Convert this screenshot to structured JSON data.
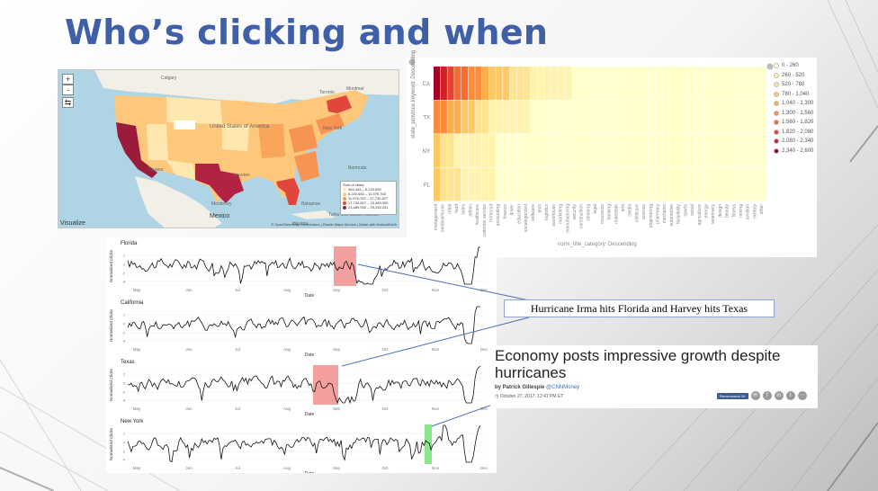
{
  "slide": {
    "title": "Who’s clicking and when",
    "callout": "Hurricane Irma hits Florida and Harvey hits Texas"
  },
  "map": {
    "zoom_in_label": "+",
    "zoom_out_label": "-",
    "places": [
      "Calgary",
      "Toronto",
      "United States of America",
      "Houston",
      "New York",
      "Montreal",
      "Bahamas",
      "Havana",
      "Bermuda",
      "Mexico",
      "Monterrey",
      "Tijuana",
      "Turks and Caicos Islands"
    ],
    "legend_title": "Sum of clicks",
    "legend_items": [
      {
        "label": "464,443 – 6,220,650",
        "color": "#fee8b0"
      },
      {
        "label": "6,220,650 – 11,976,763",
        "color": "#fdc77c"
      },
      {
        "label": "11,976,763 – 17,732,827",
        "color": "#f79353"
      },
      {
        "label": "17,732,827 – 23,489,000",
        "color": "#e0463b"
      },
      {
        "label": "23,489,000 – 29,245,251",
        "color": "#9b1b3c"
      }
    ],
    "visualize_label": "Visualize",
    "attribution": "© OpenStreetMap contributors | Elastic Maps Service | Made with NaturalEarth"
  },
  "heatmap": {
    "y_axis_title": "state_province.keyword: Descending",
    "x_axis_title": "norm_title_category: Descending",
    "rows": [
      "CA",
      "TX",
      "NY",
      "FL"
    ],
    "columns": [
      "management",
      "medical/nurse",
      "retail",
      "food",
      "sales",
      "admin",
      "healthcare",
      "customer service",
      "hr/recruit",
      "accounting",
      "finance",
      "driver",
      "education",
      "uncategorized",
      "software",
      "tech",
      "logistics",
      "warehouse",
      "marketing",
      "manufacturing",
      "security",
      "construction",
      "cleaning",
      "legal",
      "insurance",
      "banking",
      "realestate",
      "arts",
      "media",
      "childcare",
      "science",
      "engineering",
      "pharmacy",
      "mechanic",
      "automotive",
      "hospitality",
      "sports",
      "social",
      "agriculture",
      "energy",
      "veterinary",
      "design",
      "beauty",
      "fitness",
      "mining",
      "aviation",
      "military",
      "other"
    ],
    "values": [
      [
        2600,
        2300,
        2000,
        1800,
        1600,
        1500,
        1300,
        1150,
        1000,
        900,
        780,
        700,
        620,
        540,
        480,
        420,
        380,
        340,
        300,
        270,
        240,
        210,
        190,
        170,
        150,
        140,
        130,
        120,
        110,
        100,
        95,
        90,
        80,
        75,
        70,
        65,
        60,
        55,
        50,
        45,
        40,
        35,
        30,
        25,
        20,
        15,
        10,
        5
      ],
      [
        1500,
        1400,
        1200,
        1050,
        900,
        800,
        650,
        560,
        480,
        420,
        380,
        340,
        300,
        270,
        240,
        210,
        190,
        170,
        150,
        130,
        120,
        110,
        100,
        90,
        85,
        80,
        75,
        70,
        65,
        60,
        55,
        50,
        45,
        40,
        35,
        30,
        28,
        25,
        22,
        20,
        18,
        15,
        12,
        10,
        8,
        6,
        4,
        2
      ],
      [
        850,
        650,
        560,
        450,
        420,
        380,
        340,
        300,
        270,
        240,
        220,
        200,
        180,
        160,
        140,
        130,
        120,
        110,
        100,
        90,
        80,
        75,
        70,
        65,
        60,
        55,
        50,
        45,
        40,
        35,
        30,
        28,
        25,
        22,
        20,
        18,
        16,
        14,
        12,
        10,
        9,
        8,
        7,
        6,
        5,
        4,
        3,
        2
      ],
      [
        980,
        760,
        620,
        560,
        470,
        420,
        360,
        320,
        280,
        250,
        220,
        200,
        180,
        160,
        140,
        130,
        120,
        110,
        100,
        90,
        80,
        75,
        70,
        65,
        60,
        55,
        50,
        45,
        40,
        35,
        30,
        28,
        25,
        22,
        20,
        18,
        16,
        14,
        12,
        10,
        9,
        8,
        7,
        6,
        5,
        4,
        3,
        2
      ]
    ],
    "legend": [
      {
        "label": "0 - 260",
        "color": "#ffffcc"
      },
      {
        "label": "260 - 520",
        "color": "#fff3b0"
      },
      {
        "label": "520 - 780",
        "color": "#fee391"
      },
      {
        "label": "780 - 1,040",
        "color": "#fec965"
      },
      {
        "label": "1,040 - 1,300",
        "color": "#fdae4b"
      },
      {
        "label": "1,300 - 1,560",
        "color": "#fc8d3c"
      },
      {
        "label": "1,560 - 1,820",
        "color": "#f76a31"
      },
      {
        "label": "1,820 - 2,080",
        "color": "#e9412b"
      },
      {
        "label": "2,080 - 2,340",
        "color": "#d11f28"
      },
      {
        "label": "2,340 - 2,600",
        "color": "#a50026"
      }
    ]
  },
  "timeseries": {
    "y_label": "Normalized Clicks",
    "x_label": "Date",
    "months": [
      "May",
      "Jun",
      "Jul",
      "Aug",
      "Sep",
      "Oct",
      "Nov",
      "Dec"
    ],
    "yticks": [
      "2",
      "0",
      "-2",
      "-4"
    ],
    "panels": [
      {
        "title": "Florida",
        "highlight_color": "#f08080",
        "highlight_range": [
          "Aug 27",
          "Sep 12"
        ]
      },
      {
        "title": "California"
      },
      {
        "title": "Texas",
        "highlight_color": "#f08080",
        "highlight_range": [
          "Aug 20",
          "Sep 5"
        ]
      },
      {
        "title": "New York",
        "highlight_color": "#66dd66",
        "highlight_range": [
          "Oct 26",
          "Oct 30"
        ]
      }
    ]
  },
  "news": {
    "headline": "Economy posts impressive growth despite hurricanes",
    "byline_prefix": "by Patrick Gillespie",
    "byline_handle": "@CNNMoney",
    "date": "October 27, 2017: 12:41 PM ET",
    "recommend_label": "Recommend 1K",
    "share_icons": [
      "email-icon",
      "facebook-icon",
      "linkedin-icon",
      "twitter-icon",
      "more-icon"
    ]
  }
}
